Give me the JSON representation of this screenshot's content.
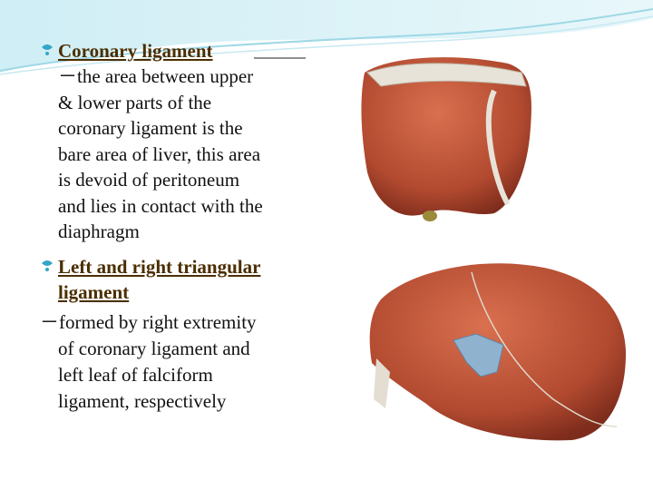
{
  "bullets": [
    {
      "heading": "Coronary ligament",
      "lines": [
        "－the area between upper",
        "& lower parts of the",
        "coronary ligament is the",
        "bare area of liver, this area",
        "is devoid of peritoneum",
        "and lies in contact with the",
        "diaphragm"
      ]
    },
    {
      "heading_lines": [
        "Left and right triangular",
        "ligament"
      ],
      "lines": [
        "－formed by right extremity",
        "of coronary ligament and",
        "left leaf of falciform",
        "ligament, respectively"
      ]
    }
  ]
}
